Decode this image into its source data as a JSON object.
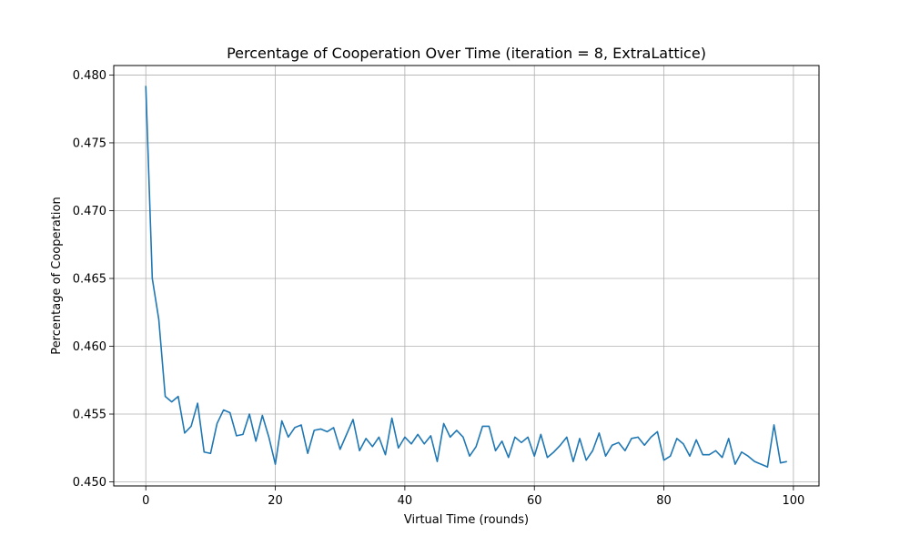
{
  "chart_data": {
    "type": "line",
    "title": "Percentage of Cooperation Over Time (iteration = 8, ExtraLattice)",
    "xlabel": "Virtual Time (rounds)",
    "ylabel": "Percentage of Cooperation",
    "xlim": [
      -4.95,
      103.95
    ],
    "ylim": [
      0.4497,
      0.4807
    ],
    "x_ticks": [
      0,
      20,
      40,
      60,
      80,
      100
    ],
    "x_tick_labels": [
      "0",
      "20",
      "40",
      "60",
      "80",
      "100"
    ],
    "y_ticks": [
      0.45,
      0.455,
      0.46,
      0.465,
      0.47,
      0.475,
      0.48
    ],
    "y_tick_labels": [
      "0.450",
      "0.455",
      "0.460",
      "0.465",
      "0.470",
      "0.475",
      "0.480"
    ],
    "grid": true,
    "line_color": "#1f77b4",
    "series": [
      {
        "values": [
          0.4792,
          0.465,
          0.462,
          0.4563,
          0.4559,
          0.4563,
          0.4536,
          0.4541,
          0.4558,
          0.4522,
          0.4521,
          0.4543,
          0.4553,
          0.4551,
          0.4534,
          0.4535,
          0.455,
          0.453,
          0.4549,
          0.4533,
          0.4513,
          0.4545,
          0.4533,
          0.454,
          0.4542,
          0.4521,
          0.4538,
          0.4539,
          0.4537,
          0.454,
          0.4524,
          0.4535,
          0.4546,
          0.4523,
          0.4532,
          0.4526,
          0.4533,
          0.452,
          0.4547,
          0.4525,
          0.4533,
          0.4528,
          0.4535,
          0.4528,
          0.4534,
          0.4515,
          0.4543,
          0.4533,
          0.4538,
          0.4533,
          0.4519,
          0.4526,
          0.4541,
          0.4541,
          0.4523,
          0.453,
          0.4518,
          0.4533,
          0.4529,
          0.4533,
          0.4519,
          0.4535,
          0.4518,
          0.4522,
          0.4527,
          0.4533,
          0.4515,
          0.4532,
          0.4516,
          0.4523,
          0.4536,
          0.4519,
          0.4527,
          0.4529,
          0.4523,
          0.4532,
          0.4533,
          0.4527,
          0.4533,
          0.4537,
          0.4516,
          0.4519,
          0.4532,
          0.4528,
          0.4519,
          0.4531,
          0.452,
          0.452,
          0.4523,
          0.4518,
          0.4532,
          0.4513,
          0.4522,
          0.4519,
          0.4515,
          0.4513,
          0.4511,
          0.4542,
          0.4514,
          0.4515
        ]
      }
    ]
  }
}
